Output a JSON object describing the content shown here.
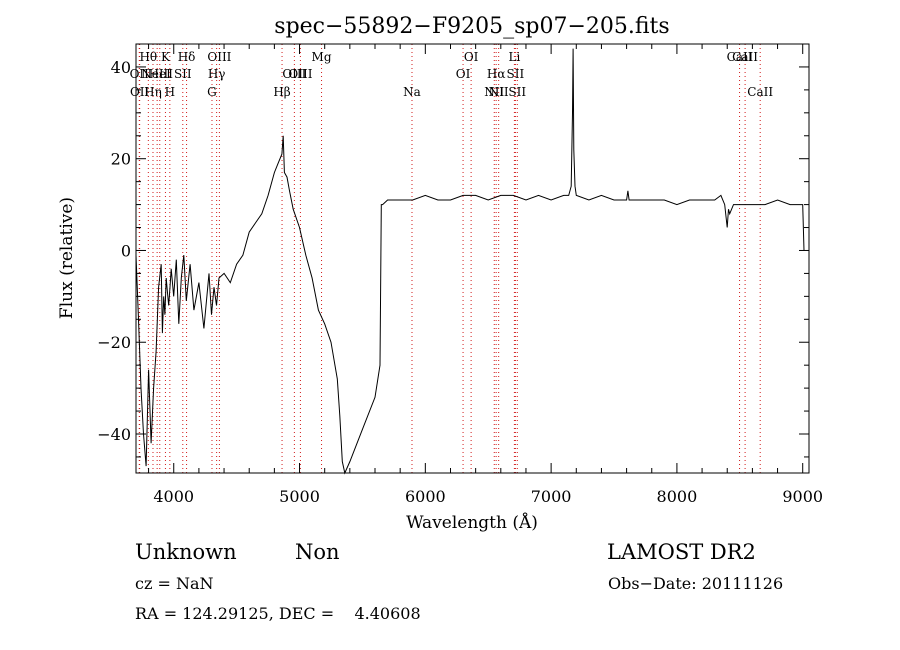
{
  "chart_data": {
    "type": "line",
    "title": "spec−55892−F9205_sp07−205.fits",
    "xlabel": "Wavelength (Å)",
    "ylabel": "Flux (relative)",
    "xlim": [
      3700,
      9050
    ],
    "ylim": [
      -48.5,
      45
    ],
    "xticks": [
      4000,
      5000,
      6000,
      7000,
      8000,
      9000
    ],
    "xtick_labels": [
      "4000",
      "5000",
      "6000",
      "7000",
      "8000",
      "9000"
    ],
    "yticks": [
      -40,
      -20,
      0,
      20,
      40
    ],
    "ytick_labels": [
      "−40",
      "−20",
      "0",
      "20",
      "40"
    ],
    "line_color": "#000000",
    "marker_color": "#d11a1a",
    "grid": false,
    "series": [
      {
        "x": [
          3700,
          3720,
          3740,
          3760,
          3780,
          3800,
          3820,
          3840,
          3860,
          3880,
          3900,
          3910,
          3920,
          3930,
          3940,
          3950,
          3960,
          3970,
          3980,
          4000,
          4020,
          4040,
          4060,
          4080,
          4100,
          4130,
          4160,
          4200,
          4240,
          4280,
          4300,
          4320,
          4340,
          4360,
          4400,
          4450,
          4500,
          4550,
          4600,
          4650,
          4700,
          4750,
          4800,
          4830,
          4860,
          4870,
          4880,
          4900,
          4920,
          4950,
          5000,
          5050,
          5100,
          5150,
          5200,
          5250,
          5300,
          5320,
          5340,
          5360,
          5400,
          5500,
          5600,
          5640,
          5650,
          5660,
          5700,
          5800,
          5900,
          6000,
          6100,
          6200,
          6300,
          6400,
          6500,
          6600,
          6700,
          6800,
          6900,
          7000,
          7100,
          7140,
          7160,
          7170,
          7175,
          7180,
          7190,
          7200,
          7300,
          7400,
          7500,
          7600,
          7610,
          7620,
          7700,
          7800,
          7900,
          8000,
          8100,
          8200,
          8300,
          8350,
          8380,
          8400,
          8410,
          8420,
          8450,
          8500,
          8600,
          8700,
          8800,
          8900,
          8980,
          8990,
          9000,
          9010
        ],
        "y": [
          -1,
          -15,
          -30,
          -40,
          -47,
          -26,
          -42,
          -30,
          -22,
          -8,
          -3,
          -18,
          -10,
          -14,
          -6,
          -9,
          -12,
          -8,
          -4,
          -10,
          -2,
          -16,
          -6,
          -1,
          -11,
          -3,
          -13,
          -7,
          -17,
          -5,
          -14,
          -8,
          -12,
          -6,
          -5,
          -7,
          -3,
          -1,
          4,
          6,
          8,
          12,
          17,
          19,
          21,
          25,
          17,
          16,
          13,
          9,
          5,
          -1,
          -6,
          -13,
          -16,
          -20,
          -28,
          -36,
          -46,
          -49,
          -46,
          -39,
          -32,
          -25,
          10,
          10,
          11,
          11,
          11,
          12,
          11,
          11,
          12,
          12,
          11,
          12,
          12,
          11,
          12,
          11,
          12,
          12,
          14,
          30,
          44,
          22,
          14,
          12,
          11,
          12,
          11,
          11,
          13,
          11,
          11,
          11,
          11,
          10,
          11,
          11,
          11,
          12,
          10,
          5,
          9,
          8,
          10,
          10,
          10,
          10,
          11,
          10,
          10,
          10,
          10,
          0
        ]
      }
    ],
    "lines": [
      {
        "x": 3726,
        "label": "OII",
        "row": 1
      },
      {
        "x": 3729,
        "label": "OII",
        "row": 2
      },
      {
        "x": 3798,
        "label": "Hθ",
        "row": 0
      },
      {
        "x": 3835,
        "label": "Hη",
        "row": 2
      },
      {
        "x": 3868,
        "label": "NeIII",
        "row": 1
      },
      {
        "x": 3889,
        "label": "HeI",
        "row": 1
      },
      {
        "x": 3934,
        "label": "K",
        "row": 0
      },
      {
        "x": 3969,
        "label": "H",
        "row": 2
      },
      {
        "x": 4072,
        "label": "SII",
        "row": 1
      },
      {
        "x": 4102,
        "label": "Hδ",
        "row": 0
      },
      {
        "x": 4304,
        "label": "G",
        "row": 2
      },
      {
        "x": 4341,
        "label": "Hγ",
        "row": 1
      },
      {
        "x": 4363,
        "label": "OIII",
        "row": 0
      },
      {
        "x": 4861,
        "label": "Hβ",
        "row": 2
      },
      {
        "x": 4959,
        "label": "OIII",
        "row": 1
      },
      {
        "x": 5007,
        "label": "OIII",
        "row": 1
      },
      {
        "x": 5175,
        "label": "Mg",
        "row": 0
      },
      {
        "x": 5894,
        "label": "Na",
        "row": 2
      },
      {
        "x": 6300,
        "label": "OI",
        "row": 1
      },
      {
        "x": 6364,
        "label": "OI",
        "row": 0
      },
      {
        "x": 6548,
        "label": "NII",
        "row": 2
      },
      {
        "x": 6563,
        "label": "Hα",
        "row": 1
      },
      {
        "x": 6583,
        "label": "NII",
        "row": 2
      },
      {
        "x": 6708,
        "label": "Li",
        "row": 0
      },
      {
        "x": 6716,
        "label": "SII",
        "row": 1
      },
      {
        "x": 6731,
        "label": "SII",
        "row": 2
      },
      {
        "x": 8498,
        "label": "CaII",
        "row": 0
      },
      {
        "x": 8542,
        "label": "CaII",
        "row": 0
      },
      {
        "x": 8662,
        "label": "CaII",
        "row": 2
      }
    ]
  },
  "footer": {
    "object_class": "Unknown",
    "subclass": "Non",
    "survey": "LAMOST DR2",
    "cz": "cz = NaN",
    "obs_date": "Obs−Date: 20111126",
    "coords": "RA = 124.29125, DEC =    4.40608"
  }
}
